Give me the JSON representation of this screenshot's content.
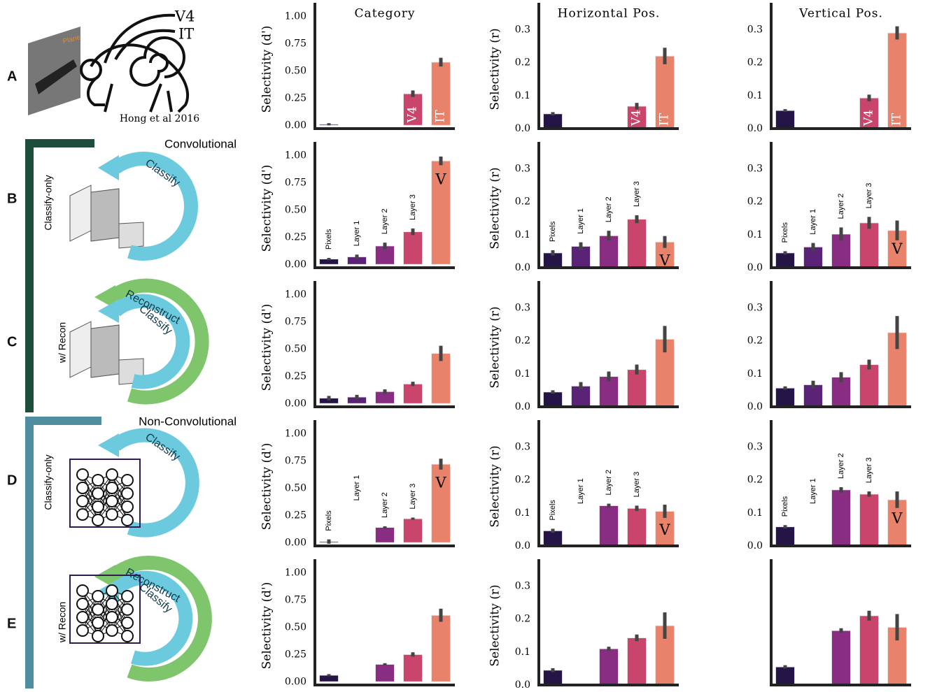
{
  "panel_labels": [
    "A",
    "B",
    "C",
    "D",
    "E"
  ],
  "hong": {
    "areas": [
      "V4",
      "IT"
    ],
    "citation": "Hong et al 2016",
    "image_label": "Plane"
  },
  "groups": [
    "Convolutional",
    "Non-Convolutional"
  ],
  "models": [
    {
      "label": "Classify-only",
      "arrows": [
        "Classify"
      ]
    },
    {
      "label": "w/ Recon",
      "arrows": [
        "Reconstruct",
        "Classify"
      ]
    },
    {
      "label": "Classify-only",
      "arrows": [
        "Classify"
      ]
    },
    {
      "label": "w/ Recon",
      "arrows": [
        "Reconstruct",
        "Classify"
      ]
    }
  ],
  "chart_data": [
    {
      "type": "bar",
      "title": "Category",
      "ylabel": "Selectivity (d')",
      "categories": [
        null,
        null,
        null,
        null,
        null
      ],
      "bar_labels": [
        null,
        null,
        null,
        "V4",
        "IT"
      ],
      "values": [
        0.01,
        null,
        null,
        0.29,
        0.58
      ],
      "errors": [
        0.01,
        null,
        null,
        0.03,
        0.04
      ],
      "colors": [
        "#251446",
        "#5a2378",
        "#882d82",
        "#c9456c",
        "#e8826a"
      ],
      "ylim": [
        -0.03,
        1.06
      ],
      "yticks": [
        {
          "value": 0,
          "label": "0.00"
        },
        {
          "value": 0.25,
          "label": "0.25"
        },
        {
          "value": 0.5,
          "label": "0.50"
        },
        {
          "value": 0.75,
          "label": "0.75"
        },
        {
          "value": 1,
          "label": "1.00"
        }
      ]
    },
    {
      "type": "bar",
      "title": "Horizontal Pos.",
      "ylabel": "Selectivity (r)",
      "categories": [
        null,
        null,
        null,
        null,
        null
      ],
      "bar_labels": [
        null,
        null,
        null,
        "V4",
        "IT"
      ],
      "values": [
        0.045,
        null,
        null,
        0.068,
        0.22
      ],
      "errors": [
        0.005,
        null,
        null,
        0.01,
        0.025
      ],
      "colors": [
        "#251446",
        "#5a2378",
        "#882d82",
        "#c9456c",
        "#e8826a"
      ],
      "ylim": [
        0,
        0.36
      ],
      "yticks": [
        {
          "value": 0,
          "label": "0.0"
        },
        0.1,
        0.2,
        0.3
      ]
    },
    {
      "type": "bar",
      "title": "Vertical Pos.",
      "categories": [
        null,
        null,
        null,
        null,
        null
      ],
      "bar_labels": [
        null,
        null,
        null,
        "V4",
        "IT"
      ],
      "values": [
        0.055,
        null,
        null,
        0.093,
        0.29
      ],
      "errors": [
        0.004,
        null,
        null,
        0.01,
        0.02
      ],
      "colors": [
        "#251446",
        "#5a2378",
        "#882d82",
        "#c9456c",
        "#e8826a"
      ],
      "ylim": [
        0,
        0.36
      ],
      "yticks": [
        {
          "value": 0,
          "label": "0.0"
        },
        0.1,
        0.2,
        0.3
      ]
    },
    {
      "type": "bar",
      "ylabel": "Selectivity (d')",
      "categories": [
        "Pixels",
        "Layer 1",
        "Layer 2",
        "Layer 3",
        null
      ],
      "bar_labels": [
        null,
        null,
        null,
        null,
        "V"
      ],
      "values": [
        0.05,
        0.07,
        0.17,
        0.3,
        0.95
      ],
      "errors": [
        0.01,
        0.02,
        0.03,
        0.03,
        0.04
      ],
      "colors": [
        "#251446",
        "#5a2378",
        "#882d82",
        "#c9456c",
        "#e8826a"
      ],
      "ylim": [
        -0.03,
        1.06
      ],
      "yticks": [
        {
          "value": 0,
          "label": "0.00"
        },
        {
          "value": 0.25,
          "label": "0.25"
        },
        {
          "value": 0.5,
          "label": "0.50"
        },
        {
          "value": 0.75,
          "label": "0.75"
        },
        {
          "value": 1,
          "label": "1.00"
        }
      ]
    },
    {
      "type": "bar",
      "ylabel": "Selectivity (r)",
      "categories": [
        "Pixels",
        "Layer 1",
        "Layer 2",
        "Layer 3",
        null
      ],
      "bar_labels": [
        null,
        null,
        null,
        null,
        "V"
      ],
      "values": [
        0.045,
        0.065,
        0.097,
        0.147,
        0.078
      ],
      "errors": [
        0.008,
        0.012,
        0.015,
        0.012,
        0.018
      ],
      "colors": [
        "#251446",
        "#5a2378",
        "#882d82",
        "#c9456c",
        "#e8826a"
      ],
      "ylim": [
        0,
        0.36
      ],
      "yticks": [
        {
          "value": 0,
          "label": "0.0"
        },
        0.1,
        0.2,
        0.3
      ]
    },
    {
      "type": "bar",
      "categories": [
        "Pixels",
        "Layer 1",
        "Layer 2",
        "Layer 3",
        null
      ],
      "bar_labels": [
        null,
        null,
        null,
        null,
        "V"
      ],
      "values": [
        0.045,
        0.063,
        0.102,
        0.136,
        0.113
      ],
      "errors": [
        0.005,
        0.012,
        0.02,
        0.018,
        0.03
      ],
      "colors": [
        "#251446",
        "#5a2378",
        "#882d82",
        "#c9456c",
        "#e8826a"
      ],
      "ylim": [
        0,
        0.36
      ],
      "yticks": [
        {
          "value": 0,
          "label": "0.0"
        },
        0.1,
        0.2,
        0.3
      ]
    },
    {
      "type": "bar",
      "ylabel": "Selectivity (d')",
      "categories": [
        null,
        null,
        null,
        null,
        null
      ],
      "values": [
        0.05,
        0.06,
        0.11,
        0.18,
        0.46
      ],
      "errors": [
        0.02,
        0.02,
        0.02,
        0.02,
        0.07
      ],
      "colors": [
        "#251446",
        "#5a2378",
        "#882d82",
        "#c9456c",
        "#e8826a"
      ],
      "ylim": [
        -0.03,
        1.06
      ],
      "yticks": [
        {
          "value": 0,
          "label": "0.00"
        },
        {
          "value": 0.25,
          "label": "0.25"
        },
        {
          "value": 0.5,
          "label": "0.50"
        },
        {
          "value": 0.75,
          "label": "0.75"
        },
        {
          "value": 1,
          "label": "1.00"
        }
      ]
    },
    {
      "type": "bar",
      "ylabel": "Selectivity (r)",
      "categories": [
        null,
        null,
        null,
        null,
        null
      ],
      "values": [
        0.045,
        0.063,
        0.092,
        0.113,
        0.205
      ],
      "errors": [
        0.005,
        0.012,
        0.015,
        0.015,
        0.04
      ],
      "colors": [
        "#251446",
        "#5a2378",
        "#882d82",
        "#c9456c",
        "#e8826a"
      ],
      "ylim": [
        0,
        0.36
      ],
      "yticks": [
        {
          "value": 0,
          "label": "0.0"
        },
        0.1,
        0.2,
        0.3
      ]
    },
    {
      "type": "bar",
      "categories": [
        null,
        null,
        null,
        null,
        null
      ],
      "values": [
        0.057,
        0.067,
        0.09,
        0.128,
        0.225
      ],
      "errors": [
        0.005,
        0.012,
        0.015,
        0.015,
        0.05
      ],
      "colors": [
        "#251446",
        "#5a2378",
        "#882d82",
        "#c9456c",
        "#e8826a"
      ],
      "ylim": [
        0,
        0.36
      ],
      "yticks": [
        {
          "value": 0,
          "label": "0.0"
        },
        0.1,
        0.2,
        0.3
      ]
    },
    {
      "type": "bar",
      "ylabel": "Selectivity (d')",
      "categories": [
        "Pixels",
        "Layer 1",
        "Layer 2",
        "Layer 3",
        null
      ],
      "bar_labels": [
        null,
        null,
        null,
        null,
        "V"
      ],
      "values": [
        0.01,
        null,
        0.14,
        0.22,
        0.72
      ],
      "errors": [
        0.02,
        null,
        0.01,
        0.01,
        0.05
      ],
      "colors": [
        "#251446",
        "#5a2378",
        "#882d82",
        "#c9456c",
        "#e8826a"
      ],
      "ylim": [
        -0.03,
        1.06
      ],
      "yticks": [
        {
          "value": 0,
          "label": "0.00"
        },
        {
          "value": 0.25,
          "label": "0.25"
        },
        {
          "value": 0.5,
          "label": "0.50"
        },
        {
          "value": 0.75,
          "label": "0.75"
        },
        {
          "value": 1,
          "label": "1.00"
        }
      ]
    },
    {
      "type": "bar",
      "ylabel": "Selectivity (r)",
      "categories": [
        "Pixels",
        "Layer 1",
        "Layer 2",
        "Layer 3",
        null
      ],
      "bar_labels": [
        null,
        null,
        null,
        null,
        "V"
      ],
      "values": [
        0.046,
        null,
        0.122,
        0.114,
        0.105
      ],
      "errors": [
        0.006,
        null,
        0.006,
        0.008,
        0.02
      ],
      "colors": [
        "#251446",
        "#5a2378",
        "#882d82",
        "#c9456c",
        "#e8826a"
      ],
      "ylim": [
        0,
        0.36
      ],
      "yticks": [
        {
          "value": 0,
          "label": "0.0"
        },
        0.1,
        0.2,
        0.3
      ]
    },
    {
      "type": "bar",
      "categories": [
        "Pixels",
        "Layer 1",
        "Layer 2",
        "Layer 3",
        null
      ],
      "bar_labels": [
        null,
        null,
        null,
        null,
        "V"
      ],
      "values": [
        0.058,
        null,
        0.17,
        0.157,
        0.14
      ],
      "errors": [
        0.005,
        null,
        0.008,
        0.008,
        0.025
      ],
      "colors": [
        "#251446",
        "#5a2378",
        "#882d82",
        "#c9456c",
        "#e8826a"
      ],
      "ylim": [
        0,
        0.36
      ],
      "yticks": [
        {
          "value": 0,
          "label": "0.0"
        },
        0.1,
        0.2,
        0.3
      ]
    },
    {
      "type": "bar",
      "ylabel": "Selectivity (d')",
      "categories": [
        null,
        null,
        null,
        null,
        null
      ],
      "values": [
        0.06,
        null,
        0.16,
        0.25,
        0.61
      ],
      "errors": [
        0.01,
        null,
        0.01,
        0.02,
        0.06
      ],
      "colors": [
        "#251446",
        "#5a2378",
        "#882d82",
        "#c9456c",
        "#e8826a"
      ],
      "ylim": [
        -0.03,
        1.06
      ],
      "yticks": [
        {
          "value": 0,
          "label": "0.00"
        },
        {
          "value": 0.25,
          "label": "0.25"
        },
        {
          "value": 0.5,
          "label": "0.50"
        },
        {
          "value": 0.75,
          "label": "0.75"
        },
        {
          "value": 1,
          "label": "1.00"
        }
      ]
    },
    {
      "type": "bar",
      "ylabel": "Selectivity (r)",
      "categories": [
        null,
        null,
        null,
        null,
        null
      ],
      "values": [
        0.045,
        null,
        0.11,
        0.143,
        0.18
      ],
      "errors": [
        0.006,
        null,
        0.006,
        0.01,
        0.04
      ],
      "colors": [
        "#251446",
        "#5a2378",
        "#882d82",
        "#c9456c",
        "#e8826a"
      ],
      "ylim": [
        0,
        0.36
      ],
      "yticks": [
        {
          "value": 0,
          "label": "0.0"
        },
        0.1,
        0.2,
        0.3
      ]
    },
    {
      "type": "bar",
      "categories": [
        null,
        null,
        null,
        null,
        null
      ],
      "values": [
        0.055,
        null,
        0.165,
        0.21,
        0.175
      ],
      "errors": [
        0.005,
        null,
        0.007,
        0.015,
        0.04
      ],
      "colors": [
        "#251446",
        "#5a2378",
        "#882d82",
        "#c9456c",
        "#e8826a"
      ],
      "ylim": [
        0,
        0.36
      ]
    }
  ]
}
